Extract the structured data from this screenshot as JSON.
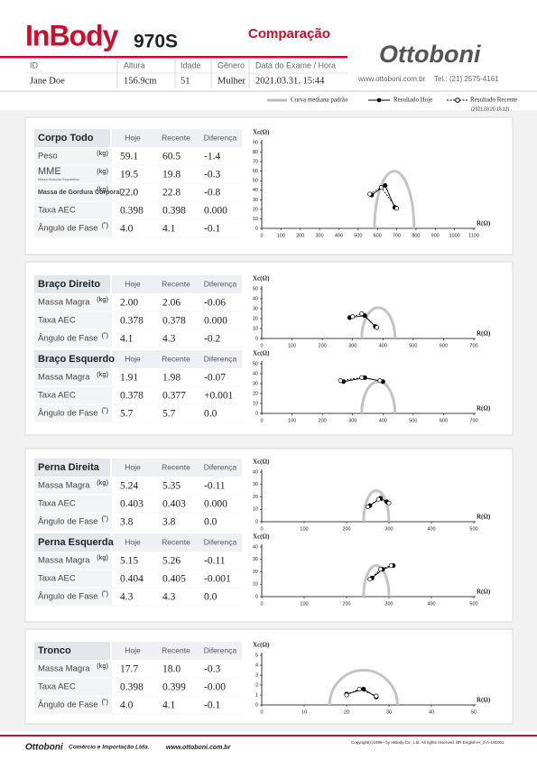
{
  "header": {
    "brand": "InBody",
    "model": "970S",
    "title": "Comparação",
    "company": "Ottoboni",
    "website": "www.ottoboni.com.br",
    "phone": "Tel.: (21) 2575-4161"
  },
  "patient": {
    "labels": [
      "ID",
      "Altura",
      "Idade",
      "Gênero",
      "Data do Exame / Hora"
    ],
    "values": [
      "Jane Doe",
      "156.9cm",
      "51",
      "Mulher",
      "2021.03.31. 15:44"
    ]
  },
  "legend": {
    "items": [
      "Curva mediana padrão",
      "Resultado Hoje",
      "Resultado Recente"
    ],
    "recent_date": "(2021.03.20 15:12)"
  },
  "columns": [
    "Hoje",
    "Recente",
    "Diferença"
  ],
  "blocks": [
    {
      "title": "Corpo Todo",
      "rows": [
        {
          "label": "Peso",
          "unit": "(kg)",
          "values": [
            "59.1",
            "60.5",
            "-1.4"
          ]
        },
        {
          "label": "MME",
          "sublabel": "Massa Muscular Esquelética",
          "unit": "(kg)",
          "values": [
            "19.5",
            "19.8",
            "-0.3"
          ]
        },
        {
          "label": "Massa de Gordura Corporal",
          "unit": "(kg)",
          "values": [
            "22.0",
            "22.8",
            "-0.8"
          ]
        },
        {
          "label": "Taxa AEC",
          "values": [
            "0.398",
            "0.398",
            "0.000"
          ]
        },
        {
          "label": "Ângulo de Fase",
          "unit": "(˚)",
          "values": [
            "4.0",
            "4.1",
            "-0.1"
          ]
        }
      ],
      "plot": {
        "y_label": "Xc(Ω)",
        "x_label": "R(Ω)",
        "xlim": [
          0,
          1100
        ],
        "ylim": [
          0,
          90
        ],
        "xticks": [
          0,
          100,
          200,
          300,
          400,
          500,
          600,
          700,
          800,
          900,
          1000,
          1100
        ],
        "yticks": [
          0,
          10,
          20,
          30,
          40,
          50,
          60,
          70,
          80,
          90
        ],
        "standard": {
          "r": [
            585,
            790
          ],
          "peak_xc": 60
        },
        "today": {
          "r": [
            570,
            640,
            690
          ],
          "xc": [
            35,
            45,
            22
          ]
        },
        "recent": {
          "r": [
            560,
            620,
            700
          ],
          "xc": [
            36,
            43,
            21
          ]
        }
      }
    },
    {
      "title": "Braço Direito",
      "rows": [
        {
          "label": "Massa Magra",
          "unit": "(kg)",
          "values": [
            "2.00",
            "2.06",
            "-0.06"
          ]
        },
        {
          "label": "Taxa AEC",
          "values": [
            "0.378",
            "0.378",
            "0.000"
          ]
        },
        {
          "label": "Ângulo de Fase",
          "unit": "(˚)",
          "values": [
            "4.1",
            "4.3",
            "-0.2"
          ]
        }
      ],
      "plot": {
        "y_label": "Xc(Ω)",
        "x_label": "R(Ω)",
        "xlim": [
          0,
          700
        ],
        "ylim": [
          0,
          50
        ],
        "xticks": [
          0,
          100,
          200,
          300,
          400,
          500,
          600,
          700
        ],
        "yticks": [
          0,
          10,
          20,
          30,
          40,
          50
        ],
        "standard": {
          "r": [
            330,
            440
          ],
          "peak_xc": 31
        },
        "today": {
          "r": [
            290,
            340,
            375
          ],
          "xc": [
            21,
            23,
            12
          ]
        },
        "recent": {
          "r": [
            300,
            330,
            380
          ],
          "xc": [
            22,
            25,
            11
          ]
        }
      }
    },
    {
      "title": "Braço Esquerdo",
      "rows": [
        {
          "label": "Massa Magra",
          "unit": "(kg)",
          "values": [
            "1.91",
            "1.98",
            "-0.07"
          ]
        },
        {
          "label": "Taxa AEC",
          "values": [
            "0.378",
            "0.377",
            "+0.001"
          ]
        },
        {
          "label": "Ângulo de Fase",
          "unit": "(˚)",
          "values": [
            "5.7",
            "5.7",
            "0.0"
          ]
        }
      ],
      "plot": {
        "y_label": "Xc(Ω)",
        "x_label": "R(Ω)",
        "xlim": [
          0,
          700
        ],
        "ylim": [
          0,
          50
        ],
        "xticks": [
          0,
          100,
          200,
          300,
          400,
          500,
          600,
          700
        ],
        "yticks": [
          0,
          10,
          20,
          30,
          40,
          50
        ],
        "standard": {
          "r": [
            330,
            440
          ],
          "peak_xc": 32
        },
        "today": {
          "r": [
            270,
            340,
            400
          ],
          "xc": [
            32,
            36,
            32
          ]
        },
        "recent": {
          "r": [
            260,
            330,
            390
          ],
          "xc": [
            33,
            36,
            33
          ]
        }
      }
    },
    {
      "title": "Perna Direita",
      "rows": [
        {
          "label": "Massa Magra",
          "unit": "(kg)",
          "values": [
            "5.24",
            "5.35",
            "-0.11"
          ]
        },
        {
          "label": "Taxa AEC",
          "values": [
            "0.403",
            "0.403",
            "0.000"
          ]
        },
        {
          "label": "Ângulo de Fase",
          "unit": "(˚)",
          "values": [
            "3.8",
            "3.8",
            "0.0"
          ]
        }
      ],
      "plot": {
        "y_label": "Xc(Ω)",
        "x_label": "R(Ω)",
        "xlim": [
          0,
          500
        ],
        "ylim": [
          0,
          40
        ],
        "xticks": [
          0,
          100,
          200,
          300,
          400,
          500
        ],
        "yticks": [
          0,
          10,
          20,
          30,
          40
        ],
        "standard": {
          "r": [
            240,
            300
          ],
          "peak_xc": 25
        },
        "today": {
          "r": [
            255,
            280,
            295
          ],
          "xc": [
            13,
            19,
            16
          ]
        },
        "recent": {
          "r": [
            250,
            275,
            300
          ],
          "xc": [
            12,
            18,
            15
          ]
        }
      }
    },
    {
      "title": "Perna Esquerda",
      "rows": [
        {
          "label": "Massa Magra",
          "unit": "(kg)",
          "values": [
            "5.15",
            "5.26",
            "-0.11"
          ]
        },
        {
          "label": "Taxa AEC",
          "values": [
            "0.404",
            "0.405",
            "-0.001"
          ]
        },
        {
          "label": "Ângulo de Fase",
          "unit": "(˚)",
          "values": [
            "4.3",
            "4.3",
            "0.0"
          ]
        }
      ],
      "plot": {
        "y_label": "Xc(Ω)",
        "x_label": "R(Ω)",
        "xlim": [
          0,
          500
        ],
        "ylim": [
          0,
          40
        ],
        "xticks": [
          0,
          100,
          200,
          300,
          400,
          500
        ],
        "yticks": [
          0,
          10,
          20,
          30,
          40
        ],
        "standard": {
          "r": [
            240,
            300
          ],
          "peak_xc": 25
        },
        "today": {
          "r": [
            260,
            285,
            310
          ],
          "xc": [
            15,
            22,
            25
          ]
        },
        "recent": {
          "r": [
            255,
            280,
            305
          ],
          "xc": [
            14,
            22,
            25
          ]
        }
      }
    },
    {
      "title": "Tronco",
      "rows": [
        {
          "label": "Massa Magra",
          "unit": "(kg)",
          "values": [
            "17.7",
            "18.0",
            "-0.3"
          ]
        },
        {
          "label": "Taxa AEC",
          "values": [
            "0.398",
            "0.399",
            "-0.00"
          ]
        },
        {
          "label": "Ângulo de Fase",
          "unit": "(˚)",
          "values": [
            "4.0",
            "4.1",
            "-0.1"
          ]
        }
      ],
      "plot": {
        "y_label": "Xc(Ω)",
        "x_label": "R(Ω)",
        "xlim": [
          0,
          50
        ],
        "ylim": [
          0,
          5
        ],
        "xticks": [
          0,
          10,
          20,
          30,
          40,
          50
        ],
        "yticks": [
          0,
          1,
          2,
          3,
          4,
          5
        ],
        "standard": {
          "r": [
            16,
            32
          ],
          "peak_xc": 3.5
        },
        "today": {
          "r": [
            20,
            24,
            27
          ],
          "xc": [
            1.1,
            1.6,
            0.8
          ]
        },
        "recent": {
          "r": [
            20,
            23,
            27
          ],
          "xc": [
            1.0,
            1.6,
            0.9
          ]
        }
      }
    }
  ],
  "footer": {
    "company": "Ottoboni",
    "tagline": "Comércio e Importação Ltda.",
    "website": "www.ottoboni.com.br",
    "copyright": "Copyright(c)1996~ by InBody Co., Ltd. All rights reserved. BR-English-H_2-A-191001"
  }
}
